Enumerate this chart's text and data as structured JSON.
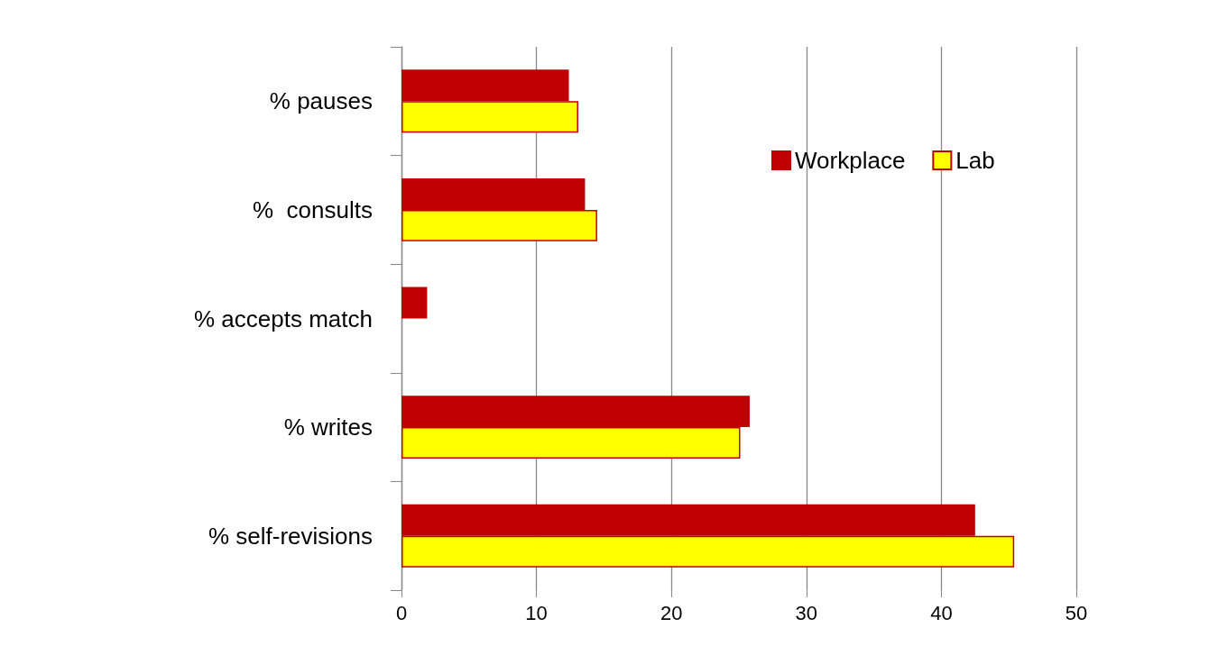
{
  "chart_data": {
    "type": "bar",
    "orientation": "horizontal",
    "categories": [
      "% pauses",
      "%  consults",
      "% accepts match",
      "% writes",
      "% self-revisions"
    ],
    "series": [
      {
        "name": "Workplace",
        "color": "#c00000",
        "values": [
          12.4,
          13.6,
          1.9,
          25.8,
          42.5
        ]
      },
      {
        "name": "Lab",
        "color": "#ffff00",
        "values": [
          13.1,
          14.5,
          null,
          25.1,
          45.4
        ]
      }
    ],
    "xlim": [
      0,
      50
    ],
    "xticks": [
      0,
      10,
      20,
      30,
      40,
      50
    ],
    "grid": "x",
    "legend": "top right"
  }
}
